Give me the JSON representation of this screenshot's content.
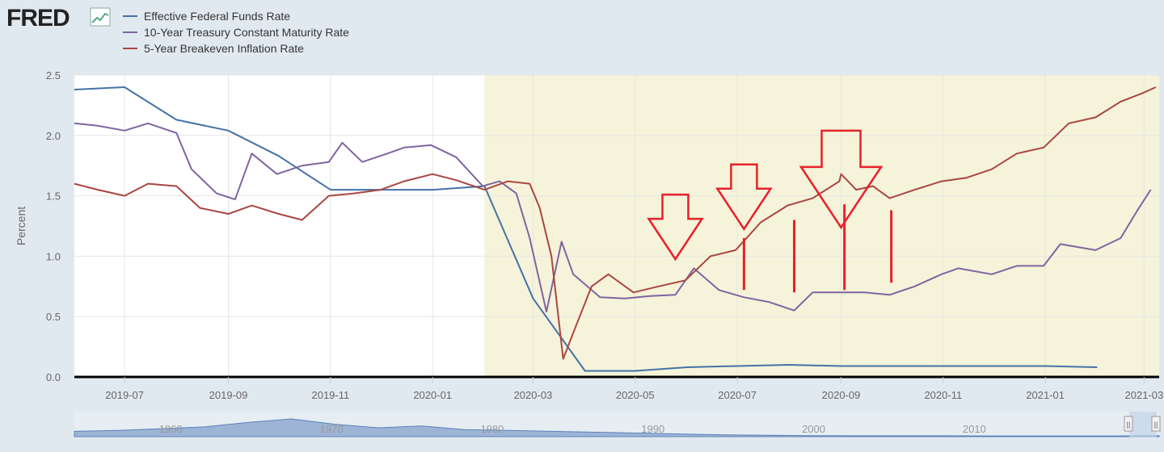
{
  "brand": {
    "logo_text": "FRED"
  },
  "colors": {
    "fedfunds": "#4572a7",
    "treasury10": "#8064a2",
    "breakeven5": "#aa4643",
    "arrow": "#e8202a",
    "shade": "#f5f3d9"
  },
  "chart_data": {
    "type": "line",
    "title": "",
    "xlabel": "",
    "ylabel": "Percent",
    "ylim": [
      0,
      2.5
    ],
    "yticks": [
      "0.0",
      "0.5",
      "1.0",
      "1.5",
      "2.0",
      "2.5"
    ],
    "xlim": [
      "2019-06-01",
      "2021-03-10"
    ],
    "xticks": [
      {
        "date": "2019-07-01",
        "label": "2019-07"
      },
      {
        "date": "2019-09-01",
        "label": "2019-09"
      },
      {
        "date": "2019-11-01",
        "label": "2019-11"
      },
      {
        "date": "2020-01-01",
        "label": "2020-01"
      },
      {
        "date": "2020-03-01",
        "label": "2020-03"
      },
      {
        "date": "2020-05-01",
        "label": "2020-05"
      },
      {
        "date": "2020-07-01",
        "label": "2020-07"
      },
      {
        "date": "2020-09-01",
        "label": "2020-09"
      },
      {
        "date": "2020-11-01",
        "label": "2020-11"
      },
      {
        "date": "2021-01-01",
        "label": "2021-01"
      },
      {
        "date": "2021-03-01",
        "label": "2021-03"
      }
    ],
    "shaded_from": "2020-02-01",
    "grid": true,
    "legend_position": "top-left",
    "series": [
      {
        "name": "Effective Federal Funds Rate",
        "color": "#4572a7",
        "x": [
          "2019-06-01",
          "2019-07-01",
          "2019-08-01",
          "2019-09-01",
          "2019-10-01",
          "2019-11-01",
          "2019-12-01",
          "2020-01-01",
          "2020-02-01",
          "2020-03-01",
          "2020-04-01",
          "2020-05-01",
          "2020-06-01",
          "2020-07-01",
          "2020-08-01",
          "2020-09-01",
          "2020-10-01",
          "2020-11-01",
          "2020-12-01",
          "2021-01-01",
          "2021-02-01"
        ],
        "y": [
          2.38,
          2.4,
          2.13,
          2.04,
          1.83,
          1.55,
          1.55,
          1.55,
          1.58,
          0.65,
          0.05,
          0.05,
          0.08,
          0.09,
          0.1,
          0.09,
          0.09,
          0.09,
          0.09,
          0.09,
          0.08
        ]
      },
      {
        "name": "10-Year Treasury Constant Maturity Rate",
        "color": "#8064a2",
        "x": [
          "2019-06-01",
          "2019-06-15",
          "2019-07-01",
          "2019-07-15",
          "2019-08-01",
          "2019-08-10",
          "2019-08-25",
          "2019-09-05",
          "2019-09-15",
          "2019-09-30",
          "2019-10-15",
          "2019-10-31",
          "2019-11-08",
          "2019-11-20",
          "2019-12-05",
          "2019-12-15",
          "2019-12-31",
          "2020-01-15",
          "2020-01-31",
          "2020-02-10",
          "2020-02-20",
          "2020-02-28",
          "2020-03-09",
          "2020-03-18",
          "2020-03-25",
          "2020-04-10",
          "2020-04-25",
          "2020-05-10",
          "2020-05-25",
          "2020-06-05",
          "2020-06-20",
          "2020-07-05",
          "2020-07-20",
          "2020-08-04",
          "2020-08-15",
          "2020-08-31",
          "2020-09-15",
          "2020-09-30",
          "2020-10-15",
          "2020-10-31",
          "2020-11-10",
          "2020-11-30",
          "2020-12-15",
          "2020-12-31",
          "2021-01-10",
          "2021-01-31",
          "2021-02-15",
          "2021-02-25",
          "2021-03-05"
        ],
        "y": [
          2.1,
          2.08,
          2.04,
          2.1,
          2.02,
          1.72,
          1.52,
          1.47,
          1.85,
          1.68,
          1.75,
          1.78,
          1.94,
          1.78,
          1.85,
          1.9,
          1.92,
          1.82,
          1.58,
          1.62,
          1.52,
          1.15,
          0.54,
          1.12,
          0.85,
          0.66,
          0.65,
          0.67,
          0.68,
          0.9,
          0.72,
          0.66,
          0.62,
          0.55,
          0.7,
          0.7,
          0.7,
          0.68,
          0.75,
          0.85,
          0.9,
          0.85,
          0.92,
          0.92,
          1.1,
          1.05,
          1.15,
          1.38,
          1.55
        ]
      },
      {
        "name": "5-Year Breakeven Inflation Rate",
        "color": "#aa4643",
        "x": [
          "2019-06-01",
          "2019-06-15",
          "2019-07-01",
          "2019-07-15",
          "2019-08-01",
          "2019-08-15",
          "2019-09-01",
          "2019-09-15",
          "2019-10-01",
          "2019-10-15",
          "2019-10-31",
          "2019-11-15",
          "2019-12-01",
          "2019-12-15",
          "2020-01-01",
          "2020-01-15",
          "2020-02-01",
          "2020-02-15",
          "2020-02-28",
          "2020-03-05",
          "2020-03-12",
          "2020-03-19",
          "2020-03-26",
          "2020-04-05",
          "2020-04-15",
          "2020-04-30",
          "2020-05-15",
          "2020-05-31",
          "2020-06-15",
          "2020-06-30",
          "2020-07-15",
          "2020-07-31",
          "2020-08-15",
          "2020-08-31",
          "2020-09-01",
          "2020-09-10",
          "2020-09-20",
          "2020-09-30",
          "2020-10-15",
          "2020-10-31",
          "2020-11-15",
          "2020-11-30",
          "2020-12-15",
          "2020-12-31",
          "2021-01-15",
          "2021-01-31",
          "2021-02-15",
          "2021-02-28",
          "2021-03-08"
        ],
        "y": [
          1.6,
          1.55,
          1.5,
          1.6,
          1.58,
          1.4,
          1.35,
          1.42,
          1.35,
          1.3,
          1.5,
          1.52,
          1.55,
          1.62,
          1.68,
          1.63,
          1.55,
          1.62,
          1.6,
          1.4,
          1.0,
          0.15,
          0.4,
          0.75,
          0.85,
          0.7,
          0.75,
          0.8,
          1.0,
          1.05,
          1.28,
          1.42,
          1.48,
          1.62,
          1.68,
          1.55,
          1.58,
          1.48,
          1.55,
          1.62,
          1.65,
          1.72,
          1.85,
          1.9,
          2.1,
          2.15,
          2.28,
          2.35,
          2.4
        ]
      }
    ],
    "annotations": [
      {
        "type": "arrow-down",
        "date": "2020-05-25",
        "value": 1.51,
        "scale": 1.0
      },
      {
        "type": "arrow-down",
        "date": "2020-07-05",
        "value": 1.76,
        "scale": 1.0
      },
      {
        "type": "arrow-down",
        "date": "2020-09-01",
        "value": 2.04,
        "scale": 1.5
      },
      {
        "type": "vline",
        "date": "2020-07-05",
        "from": 0.72,
        "to": 1.15
      },
      {
        "type": "vline",
        "date": "2020-08-04",
        "from": 0.7,
        "to": 1.3
      },
      {
        "type": "vline",
        "date": "2020-09-03",
        "from": 0.72,
        "to": 1.43
      },
      {
        "type": "vline",
        "date": "2020-10-01",
        "from": 0.78,
        "to": 1.38
      }
    ]
  },
  "navigator": {
    "labels": [
      "1960",
      "1970",
      "1980",
      "1990",
      "2000",
      "2010"
    ],
    "range": [
      1954,
      2021.5
    ],
    "profile": [
      0.3,
      0.35,
      0.45,
      0.55,
      0.8,
      1.0,
      0.7,
      0.5,
      0.6,
      0.4,
      0.35,
      0.3,
      0.25,
      0.2,
      0.15,
      0.1,
      0.08,
      0.06,
      0.05,
      0.05,
      0.05,
      0.04,
      0.04,
      0.04,
      0.04,
      0.06
    ],
    "handles_symbol": "||"
  }
}
